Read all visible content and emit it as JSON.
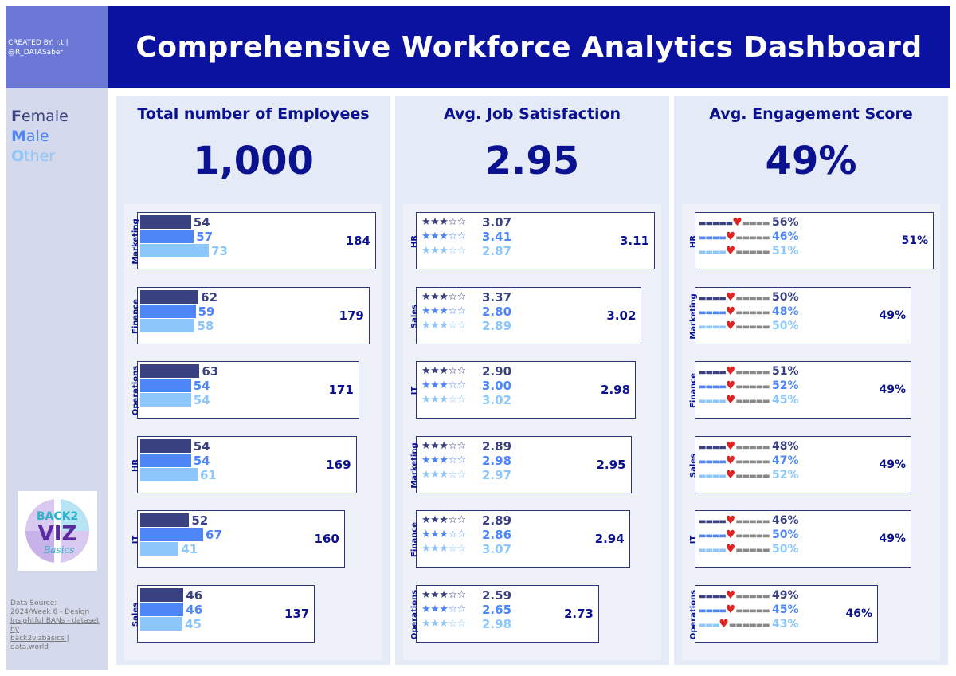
{
  "header": {
    "title": "Comprehensive Workforce Analytics Dashboard"
  },
  "credit": {
    "line1": "CREATED BY: r.t |",
    "line2": "@R_DATASaber"
  },
  "legend": [
    {
      "initial": "F",
      "rest": "emale",
      "color": "#3a4180"
    },
    {
      "initial": "M",
      "rest": "ale",
      "color": "#4f86f7"
    },
    {
      "initial": "O",
      "rest": "ther",
      "color": "#8cc6fb"
    }
  ],
  "logo": {
    "line1": "BACK2",
    "line2": "VIZ",
    "line3": "Basics"
  },
  "source": {
    "label": "Data Source:",
    "line1": "2024/Week 6 - Design",
    "line2": "Insightful BANs - dataset by",
    "line3": "back2vizbasics | data.world"
  },
  "colors": {
    "female": "#3a4180",
    "male": "#4f86f7",
    "other": "#8cc6fb",
    "accent": "#0b12a0",
    "heart": "#e02424"
  },
  "kpis": [
    {
      "title": "Total number of Employees",
      "value": "1,000"
    },
    {
      "title": "Avg. Job Satisfaction",
      "value": "2.95"
    },
    {
      "title": "Avg. Engagement Score",
      "value": "49%"
    }
  ],
  "chart_data": [
    {
      "type": "bar",
      "title": "Total number of Employees",
      "categories": [
        "Marketing",
        "Finance",
        "Operations",
        "HR",
        "IT",
        "Sales"
      ],
      "series": [
        {
          "name": "Female",
          "values": [
            54,
            62,
            63,
            54,
            52,
            46
          ]
        },
        {
          "name": "Male",
          "values": [
            57,
            59,
            54,
            54,
            67,
            46
          ]
        },
        {
          "name": "Other",
          "values": [
            73,
            58,
            54,
            61,
            41,
            45
          ]
        }
      ],
      "totals": [
        184,
        179,
        171,
        169,
        160,
        137
      ]
    },
    {
      "type": "bar",
      "title": "Avg. Job Satisfaction",
      "categories": [
        "HR",
        "Sales",
        "IT",
        "Marketing",
        "Finance",
        "Operations"
      ],
      "series": [
        {
          "name": "Female",
          "values": [
            "3.07",
            "3.37",
            "2.90",
            "2.89",
            "2.89",
            "2.59"
          ]
        },
        {
          "name": "Male",
          "values": [
            "3.41",
            "2.80",
            "3.00",
            "2.98",
            "2.86",
            "2.65"
          ]
        },
        {
          "name": "Other",
          "values": [
            "2.87",
            "2.89",
            "3.02",
            "2.97",
            "3.07",
            "2.98"
          ]
        }
      ],
      "totals": [
        "3.11",
        "3.02",
        "2.98",
        "2.95",
        "2.94",
        "2.73"
      ],
      "max_rating": 5
    },
    {
      "type": "bar",
      "title": "Avg. Engagement Score",
      "categories": [
        "HR",
        "Marketing",
        "Finance",
        "Sales",
        "IT",
        "Operations"
      ],
      "series": [
        {
          "name": "Female",
          "values": [
            "56%",
            "50%",
            "51%",
            "48%",
            "46%",
            "49%"
          ]
        },
        {
          "name": "Male",
          "values": [
            "46%",
            "48%",
            "52%",
            "47%",
            "50%",
            "45%"
          ]
        },
        {
          "name": "Other",
          "values": [
            "51%",
            "50%",
            "45%",
            "52%",
            "50%",
            "43%"
          ]
        }
      ],
      "totals": [
        "51%",
        "49%",
        "49%",
        "49%",
        "49%",
        "46%"
      ]
    }
  ]
}
